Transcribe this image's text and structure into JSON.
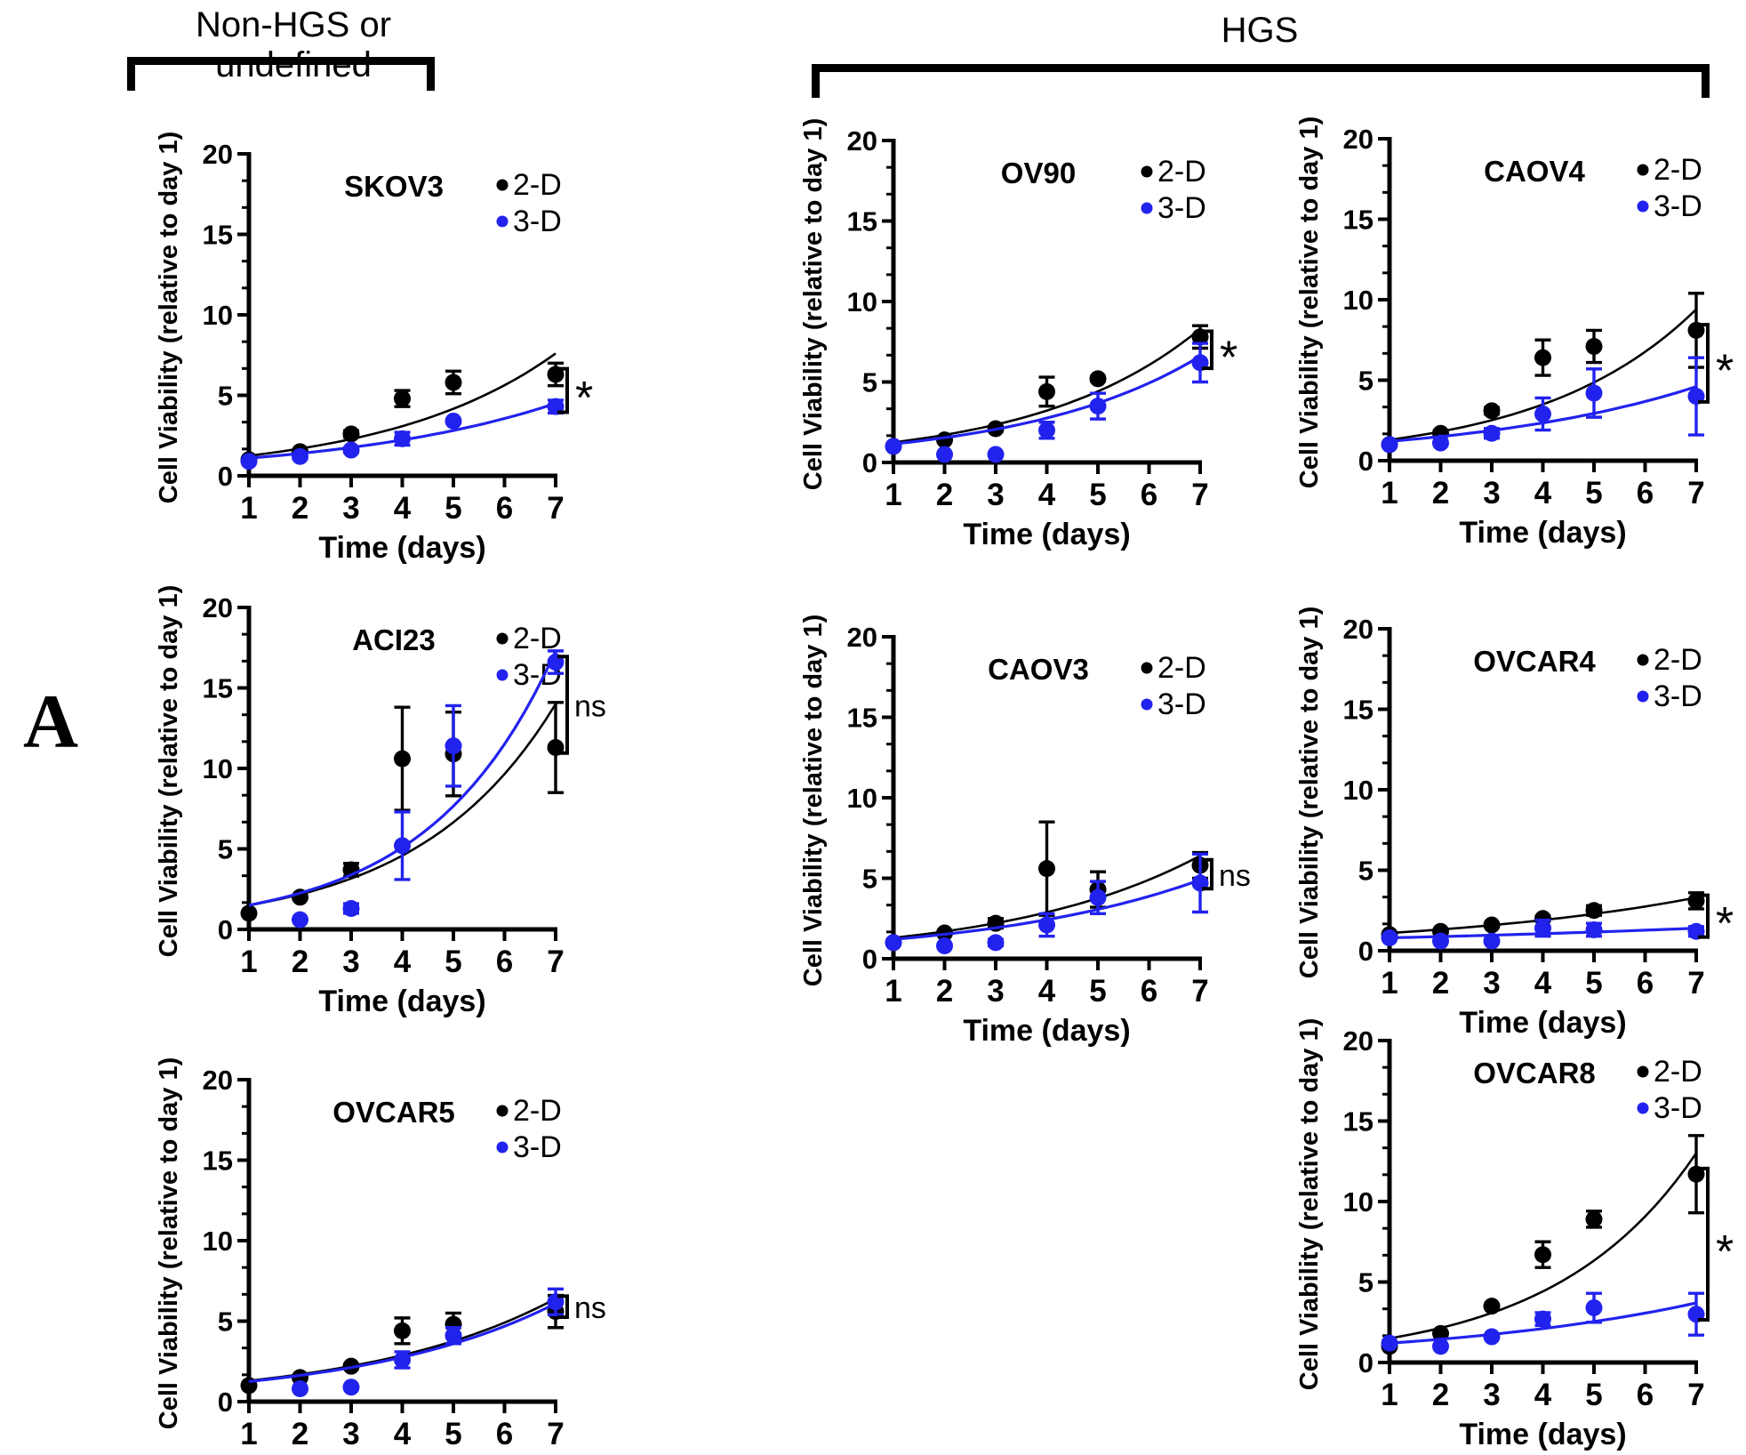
{
  "panel_label": "A",
  "group_headers": [
    {
      "label": "Non-HGS or undefined"
    },
    {
      "label": "HGS"
    }
  ],
  "axes": {
    "ylabel": "Cell Viability (relative to day 1)",
    "xlabel": "Time (days)",
    "ylim": [
      0,
      20
    ],
    "yticks": [
      0,
      5,
      10,
      15,
      20
    ],
    "xticks": [
      1,
      2,
      3,
      4,
      5,
      6,
      7
    ],
    "grid": false,
    "legend_position": "top-right"
  },
  "colors": {
    "series_2d": "#000000",
    "series_3d": "#2222ee"
  },
  "chart_data": [
    {
      "type": "scatter",
      "title": "SKOV3",
      "group": "Non-HGS or undefined",
      "significance": "*",
      "series": [
        {
          "name": "2-D",
          "color": "#000000",
          "x": [
            1,
            2,
            3,
            4,
            5,
            7
          ],
          "y": [
            1.0,
            1.5,
            2.6,
            4.8,
            5.8,
            6.3
          ],
          "err": [
            0,
            0,
            0.2,
            0.5,
            0.7,
            0.7
          ],
          "fit": [
            1.25,
            7.6
          ]
        },
        {
          "name": "3-D",
          "color": "#2222ee",
          "x": [
            1,
            2,
            3,
            4,
            5,
            7
          ],
          "y": [
            0.9,
            1.2,
            1.6,
            2.3,
            3.4,
            4.3
          ],
          "err": [
            0,
            0.15,
            0.15,
            0.4,
            0.1,
            0.4
          ],
          "fit": [
            1.1,
            4.5
          ]
        }
      ]
    },
    {
      "type": "scatter",
      "title": "OV90",
      "group": "HGS",
      "significance": "*",
      "series": [
        {
          "name": "2-D",
          "color": "#000000",
          "x": [
            1,
            2,
            3,
            4,
            5,
            7
          ],
          "y": [
            1.0,
            1.4,
            2.1,
            4.4,
            5.2,
            7.8
          ],
          "err": [
            0,
            0.1,
            0.15,
            0.9,
            0.15,
            0.7
          ],
          "fit": [
            1.25,
            8.3
          ]
        },
        {
          "name": "3-D",
          "color": "#2222ee",
          "x": [
            1,
            2,
            3,
            4,
            5,
            7
          ],
          "y": [
            1.0,
            0.5,
            0.5,
            2.0,
            3.5,
            6.2
          ],
          "err": [
            0,
            0,
            0,
            0.5,
            0.8,
            1.2
          ],
          "fit": [
            1.15,
            6.6
          ]
        }
      ]
    },
    {
      "type": "scatter",
      "title": "CAOV4",
      "group": "HGS",
      "significance": "*",
      "series": [
        {
          "name": "2-D",
          "color": "#000000",
          "x": [
            1,
            2,
            3,
            4,
            5,
            7
          ],
          "y": [
            1.0,
            1.7,
            3.1,
            6.4,
            7.1,
            8.1
          ],
          "err": [
            0,
            0.15,
            0.2,
            1.1,
            1.0,
            2.3
          ],
          "fit": [
            1.3,
            9.4
          ]
        },
        {
          "name": "3-D",
          "color": "#2222ee",
          "x": [
            1,
            2,
            3,
            4,
            5,
            7
          ],
          "y": [
            1.0,
            1.1,
            1.7,
            2.9,
            4.2,
            4.0
          ],
          "err": [
            0,
            0.1,
            0.3,
            1.0,
            1.5,
            2.4
          ],
          "fit": [
            1.2,
            4.6
          ]
        }
      ]
    },
    {
      "type": "scatter",
      "title": "ACI23",
      "group": "Non-HGS or undefined",
      "significance": "ns",
      "series": [
        {
          "name": "2-D",
          "color": "#000000",
          "x": [
            1,
            2,
            3,
            4,
            5,
            7
          ],
          "y": [
            1.0,
            2.0,
            3.7,
            10.6,
            10.9,
            11.3
          ],
          "err": [
            0,
            0.1,
            0.4,
            3.2,
            2.6,
            2.8
          ],
          "fit": [
            1.5,
            14.0
          ]
        },
        {
          "name": "3-D",
          "color": "#2222ee",
          "x": [
            2,
            3,
            4,
            5,
            7
          ],
          "y": [
            0.6,
            1.3,
            5.2,
            11.4,
            16.6
          ],
          "err": [
            0,
            0.3,
            2.1,
            2.5,
            0.7
          ],
          "fit": [
            1.5,
            17.3
          ]
        }
      ]
    },
    {
      "type": "scatter",
      "title": "CAOV3",
      "group": "HGS",
      "significance": "ns",
      "series": [
        {
          "name": "2-D",
          "color": "#000000",
          "x": [
            1,
            2,
            3,
            4,
            5,
            7
          ],
          "y": [
            1.0,
            1.6,
            2.2,
            5.6,
            4.3,
            5.8
          ],
          "err": [
            0,
            0.1,
            0.3,
            2.9,
            1.1,
            0.8
          ],
          "fit": [
            1.3,
            6.4
          ]
        },
        {
          "name": "3-D",
          "color": "#2222ee",
          "x": [
            1,
            2,
            3,
            4,
            5,
            7
          ],
          "y": [
            1.0,
            0.8,
            1.0,
            2.1,
            3.8,
            4.7
          ],
          "err": [
            0,
            0.1,
            0.2,
            0.7,
            1.0,
            1.8
          ],
          "fit": [
            1.2,
            4.9
          ]
        }
      ]
    },
    {
      "type": "scatter",
      "title": "OVCAR4",
      "group": "HGS",
      "significance": "*",
      "series": [
        {
          "name": "2-D",
          "color": "#000000",
          "x": [
            1,
            2,
            3,
            4,
            5,
            7
          ],
          "y": [
            1.0,
            1.2,
            1.6,
            2.0,
            2.5,
            3.1
          ],
          "err": [
            0,
            0.1,
            0.1,
            0.15,
            0.3,
            0.5
          ],
          "fit": [
            1.1,
            3.3
          ]
        },
        {
          "name": "3-D",
          "color": "#2222ee",
          "x": [
            1,
            2,
            3,
            4,
            5,
            7
          ],
          "y": [
            0.8,
            0.6,
            0.6,
            1.4,
            1.3,
            1.2
          ],
          "err": [
            0,
            0,
            0,
            0.5,
            0.4,
            0.3
          ],
          "fit": [
            0.8,
            1.4
          ]
        }
      ]
    },
    {
      "type": "scatter",
      "title": "OVCAR5",
      "group": "Non-HGS or undefined",
      "significance": "ns",
      "series": [
        {
          "name": "2-D",
          "color": "#000000",
          "x": [
            1,
            2,
            3,
            4,
            5,
            7
          ],
          "y": [
            1.0,
            1.5,
            2.2,
            4.4,
            4.8,
            5.6
          ],
          "err": [
            0,
            0.1,
            0.1,
            0.8,
            0.7,
            1.0
          ],
          "fit": [
            1.3,
            6.4
          ]
        },
        {
          "name": "3-D",
          "color": "#2222ee",
          "x": [
            2,
            3,
            4,
            5,
            7
          ],
          "y": [
            0.8,
            0.9,
            2.6,
            4.1,
            6.2
          ],
          "err": [
            0,
            0,
            0.5,
            0.5,
            0.8
          ],
          "fit": [
            1.25,
            6.1
          ]
        }
      ]
    },
    {
      "type": "scatter",
      "title": "OVCAR8",
      "group": "HGS",
      "significance": "*",
      "series": [
        {
          "name": "2-D",
          "color": "#000000",
          "x": [
            1,
            2,
            3,
            4,
            5,
            7
          ],
          "y": [
            1.0,
            1.8,
            3.5,
            6.7,
            8.9,
            11.7
          ],
          "err": [
            0,
            0,
            0,
            0.8,
            0.5,
            2.4
          ],
          "fit": [
            1.5,
            13.0
          ]
        },
        {
          "name": "3-D",
          "color": "#2222ee",
          "x": [
            1,
            2,
            3,
            4,
            5,
            7
          ],
          "y": [
            1.2,
            1.0,
            1.6,
            2.7,
            3.4,
            3.0
          ],
          "err": [
            0,
            0,
            0,
            0.4,
            0.9,
            1.3
          ],
          "fit": [
            1.2,
            3.7
          ]
        }
      ]
    }
  ]
}
